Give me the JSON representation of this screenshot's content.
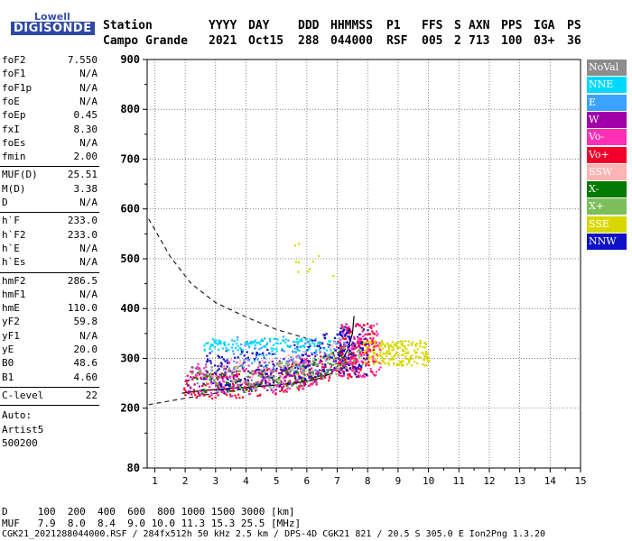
{
  "logo": {
    "top": "Lowell",
    "bottom": "DIGISONDE"
  },
  "header": {
    "row1": [
      "Station",
      "YYYY",
      "DAY",
      "DDD",
      "HHMMSS",
      "P1",
      "FFS",
      "S",
      "AXN",
      "PPS",
      "IGA",
      "PS"
    ],
    "row2": [
      "Campo Grande",
      "2021",
      "Oct15",
      "288",
      "044000",
      "RSF",
      "005",
      "2",
      "713",
      "100",
      "03+",
      "36"
    ]
  },
  "params": {
    "group1": [
      {
        "name": "foF2",
        "value": "7.550"
      },
      {
        "name": "foF1",
        "value": "N/A"
      },
      {
        "name": "foF1p",
        "value": "N/A"
      },
      {
        "name": "foE",
        "value": "N/A"
      },
      {
        "name": "foEp",
        "value": "0.45"
      },
      {
        "name": "fxI",
        "value": "8.30"
      },
      {
        "name": "foEs",
        "value": "N/A"
      },
      {
        "name": "fmin",
        "value": "2.00"
      }
    ],
    "group2": [
      {
        "name": "MUF(D)",
        "value": "25.51"
      },
      {
        "name": "M(D)",
        "value": "3.38"
      },
      {
        "name": "D",
        "value": "N/A"
      }
    ],
    "group3": [
      {
        "name": "h`F",
        "value": "233.0"
      },
      {
        "name": "h`F2",
        "value": "233.0"
      },
      {
        "name": "h`E",
        "value": "N/A"
      },
      {
        "name": "h`Es",
        "value": "N/A"
      }
    ],
    "group4": [
      {
        "name": "hmF2",
        "value": "286.5"
      },
      {
        "name": "hmF1",
        "value": "N/A"
      },
      {
        "name": "hmE",
        "value": "110.0"
      },
      {
        "name": "yF2",
        "value": "59.8"
      },
      {
        "name": "yF1",
        "value": "N/A"
      },
      {
        "name": "yE",
        "value": "20.0"
      },
      {
        "name": "B0",
        "value": "48.6"
      },
      {
        "name": "B1",
        "value": "4.60"
      }
    ],
    "group5": [
      {
        "name": "C-level",
        "value": "22"
      }
    ],
    "auto": [
      "Auto:",
      "Artist5",
      "500200"
    ]
  },
  "legend": [
    {
      "label": "NoVal",
      "color": "#8c8c8c"
    },
    {
      "label": "NNE",
      "color": "#00d8ff"
    },
    {
      "label": "E",
      "color": "#3aa2ff"
    },
    {
      "label": "W",
      "color": "#a000a8"
    },
    {
      "label": "Vo-",
      "color": "#ff2fb4"
    },
    {
      "label": "Vo+",
      "color": "#f2002a"
    },
    {
      "label": "SSW",
      "color": "#ffb4b4"
    },
    {
      "label": "X-",
      "color": "#007a00"
    },
    {
      "label": "X+",
      "color": "#7cbf5a"
    },
    {
      "label": "SSE",
      "color": "#d8d800"
    },
    {
      "label": "NNW",
      "color": "#1010c8"
    }
  ],
  "footer": {
    "line1": "D     100  200  400  600  800 1000 1500 3000 [km]",
    "line2": "MUF   7.9  8.0  8.4  9.0 10.0 11.3 15.3 25.5 [MHz]",
    "line3": "CGK21_2021288044000.RSF / 284fx512h 50 kHz 2.5 km / DPS-4D CGK21 821 / 20.5 S 305.0 E Ion2Png 1.3.20"
  },
  "chart_data": {
    "type": "scatter",
    "xlim": [
      0.75,
      15
    ],
    "ylim": [
      80,
      900
    ],
    "x_ticks": [
      1,
      2,
      3,
      4,
      5,
      6,
      7,
      8,
      9,
      10,
      11,
      12,
      13,
      14,
      15
    ],
    "y_ticks": [
      80,
      200,
      300,
      400,
      500,
      600,
      700,
      800,
      900
    ],
    "grid": true,
    "legend_position": "right",
    "curves": {
      "dashed_upper": [
        [
          0.8,
          580
        ],
        [
          1.5,
          505
        ],
        [
          2.2,
          450
        ],
        [
          3.0,
          412
        ],
        [
          4.0,
          383
        ],
        [
          5.0,
          358
        ],
        [
          6.0,
          340
        ],
        [
          6.9,
          325
        ]
      ],
      "dashed_lower": [
        [
          0.8,
          207
        ],
        [
          2.0,
          220
        ],
        [
          3.0,
          230
        ],
        [
          4.0,
          239
        ],
        [
          5.0,
          247
        ],
        [
          6.0,
          256
        ],
        [
          6.6,
          268
        ],
        [
          7.0,
          283
        ],
        [
          7.3,
          300
        ],
        [
          7.55,
          340
        ]
      ],
      "solid_trace": [
        [
          1.9,
          230
        ],
        [
          2.5,
          235
        ],
        [
          3.5,
          240
        ],
        [
          4.5,
          244
        ],
        [
          5.5,
          249
        ],
        [
          6.3,
          257
        ],
        [
          6.8,
          270
        ],
        [
          7.1,
          290
        ],
        [
          7.35,
          318
        ],
        [
          7.5,
          350
        ],
        [
          7.55,
          385
        ]
      ]
    },
    "clusters": [
      {
        "series": "Vo+",
        "color": "#f2002a",
        "x_range": [
          1.9,
          7.6
        ],
        "y_base": 240,
        "y_spread": 55,
        "count": 260,
        "rise": 1
      },
      {
        "series": "W",
        "color": "#a000a8",
        "x_range": [
          2.0,
          7.7
        ],
        "y_base": 250,
        "y_spread": 60,
        "count": 200,
        "rise": 1
      },
      {
        "series": "Vo-",
        "color": "#ff2fb4",
        "x_range": [
          2.2,
          8.0
        ],
        "y_base": 250,
        "y_spread": 70,
        "count": 160,
        "rise": 1
      },
      {
        "series": "NNW",
        "color": "#1010c8",
        "x_range": [
          2.5,
          7.4
        ],
        "y_base": 265,
        "y_spread": 80,
        "count": 220,
        "rise": 1
      },
      {
        "series": "E",
        "color": "#3aa2ff",
        "x_range": [
          3.5,
          7.3
        ],
        "y_base": 300,
        "y_spread": 70,
        "count": 120,
        "rise": 0
      },
      {
        "series": "NNE",
        "color": "#00d8ff",
        "x_range": [
          2.6,
          6.8
        ],
        "y_base": 325,
        "y_spread": 25,
        "count": 120,
        "rise": 0
      },
      {
        "series": "X-",
        "color": "#007a00",
        "x_range": [
          2.2,
          7.3
        ],
        "y_base": 245,
        "y_spread": 40,
        "count": 90,
        "rise": 1
      },
      {
        "series": "X+",
        "color": "#7cbf5a",
        "x_range": [
          2.3,
          7.8
        ],
        "y_base": 250,
        "y_spread": 55,
        "count": 100,
        "rise": 1
      },
      {
        "series": "NoVal",
        "color": "#8c8c8c",
        "x_range": [
          2.0,
          8.0
        ],
        "y_base": 250,
        "y_spread": 60,
        "count": 80,
        "rise": 1
      },
      {
        "series": "SSW",
        "color": "#ffb4b4",
        "x_range": [
          2.5,
          7.5
        ],
        "y_base": 260,
        "y_spread": 60,
        "count": 60,
        "rise": 1
      },
      {
        "series": "SSE",
        "color": "#d8d800",
        "x_range": [
          7.8,
          10.0
        ],
        "y_base": 305,
        "y_spread": 50,
        "count": 220,
        "rise": 0
      },
      {
        "series": "Vo+",
        "color": "#f2002a",
        "x_range": [
          7.0,
          8.2
        ],
        "y_base": 300,
        "y_spread": 110,
        "count": 120,
        "rise": 0
      },
      {
        "series": "Vo-",
        "color": "#ff2fb4",
        "x_range": [
          7.0,
          8.4
        ],
        "y_base": 300,
        "y_spread": 110,
        "count": 90,
        "rise": 0
      },
      {
        "series": "NNW",
        "color": "#1010c8",
        "x_range": [
          7.0,
          8.0
        ],
        "y_base": 300,
        "y_spread": 100,
        "count": 70,
        "rise": 0
      },
      {
        "series": "SSE",
        "color": "#d8d800",
        "x_range": [
          5.5,
          7.0
        ],
        "y_base": 490,
        "y_spread": 90,
        "count": 10,
        "rise": 0
      }
    ]
  }
}
